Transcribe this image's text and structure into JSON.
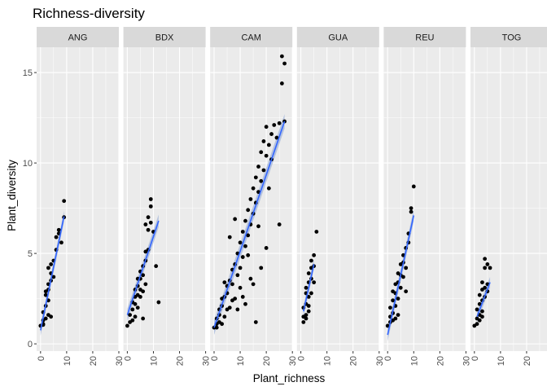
{
  "chart_data": {
    "type": "scatter",
    "title": "Richness-diversity",
    "xlabel": "Plant_richness",
    "ylabel": "Plant_diversity",
    "xlim": [
      -1.5,
      30
    ],
    "ylim": [
      -0.4,
      16.4
    ],
    "x_ticks": [
      0,
      10,
      20,
      30
    ],
    "y_ticks": [
      0,
      5,
      10,
      15
    ],
    "x_tick_labels": [
      "0",
      "10",
      "20",
      "30"
    ],
    "y_tick_labels": [
      "0",
      "5",
      "10",
      "15"
    ],
    "grid": true,
    "facet_by": "site",
    "colors": {
      "panel": "#ebebeb",
      "strip": "#d9d9d9",
      "grid": "#ffffff",
      "point": "#000000",
      "fit_line": "#3366ff",
      "fit_band": "#9db0d8"
    },
    "panels": [
      {
        "label": "ANG",
        "fit": {
          "x0": 0,
          "y0": 0.75,
          "x1": 9,
          "y1": 7.05,
          "band": 0.3
        },
        "points": [
          [
            0,
            1
          ],
          [
            1,
            1.05
          ],
          [
            1,
            1.3
          ],
          [
            2,
            1.4
          ],
          [
            1,
            1.75
          ],
          [
            2,
            2.1
          ],
          [
            3,
            2.4
          ],
          [
            2,
            2.7
          ],
          [
            3,
            3
          ],
          [
            3,
            3.3
          ],
          [
            4,
            3.5
          ],
          [
            4,
            3.9
          ],
          [
            3,
            4.2
          ],
          [
            4,
            4.4
          ],
          [
            5,
            4.6
          ],
          [
            5,
            3.7
          ],
          [
            6,
            5.2
          ],
          [
            6,
            5.9
          ],
          [
            7,
            6.1
          ],
          [
            7,
            6.3
          ],
          [
            8,
            5.6
          ],
          [
            9,
            7
          ],
          [
            9,
            7.9
          ],
          [
            3,
            1.6
          ],
          [
            4,
            1.5
          ],
          [
            1,
            1.1
          ],
          [
            2,
            2.9
          ]
        ]
      },
      {
        "label": "BDX",
        "fit": {
          "x0": 0,
          "y0": 1.6,
          "x1": 12,
          "y1": 6.8,
          "band": 0.35
        },
        "points": [
          [
            0,
            1
          ],
          [
            1,
            1.2
          ],
          [
            1,
            1.6
          ],
          [
            2,
            1.9
          ],
          [
            2,
            2.3
          ],
          [
            3,
            2.6
          ],
          [
            3,
            3
          ],
          [
            4,
            3.2
          ],
          [
            4,
            2
          ],
          [
            5,
            3.6
          ],
          [
            5,
            4
          ],
          [
            6,
            4.3
          ],
          [
            6,
            2.9
          ],
          [
            7,
            4.6
          ],
          [
            7,
            5.1
          ],
          [
            7,
            6.6
          ],
          [
            8,
            5.2
          ],
          [
            8,
            6.3
          ],
          [
            8,
            7
          ],
          [
            9,
            6.7
          ],
          [
            9,
            7.6
          ],
          [
            9,
            8
          ],
          [
            10,
            6.2
          ],
          [
            11,
            4.3
          ],
          [
            12,
            2.3
          ],
          [
            3,
            1.5
          ],
          [
            4,
            3.6
          ],
          [
            5,
            2.6
          ],
          [
            6,
            1.4
          ],
          [
            2,
            1.3
          ],
          [
            3,
            2.2
          ],
          [
            4,
            2.7
          ],
          [
            5,
            3
          ],
          [
            6,
            3.8
          ],
          [
            7,
            3.3
          ]
        ]
      },
      {
        "label": "CAM",
        "fit": {
          "x0": 0,
          "y0": 0.9,
          "x1": 27,
          "y1": 12.3,
          "band": 0.4
        },
        "points": [
          [
            0,
            0.9
          ],
          [
            1,
            1.1
          ],
          [
            1,
            1.4
          ],
          [
            2,
            1.6
          ],
          [
            2,
            1.9
          ],
          [
            3,
            2.1
          ],
          [
            3,
            2.5
          ],
          [
            4,
            2.6
          ],
          [
            4,
            1.5
          ],
          [
            5,
            2.8
          ],
          [
            5,
            3.2
          ],
          [
            6,
            2
          ],
          [
            6,
            3.5
          ],
          [
            7,
            3.3
          ],
          [
            7,
            4.1
          ],
          [
            8,
            2.5
          ],
          [
            8,
            4.4
          ],
          [
            9,
            3.8
          ],
          [
            9,
            5
          ],
          [
            10,
            4.2
          ],
          [
            10,
            5.6
          ],
          [
            11,
            4.8
          ],
          [
            11,
            6.2
          ],
          [
            12,
            5.4
          ],
          [
            12,
            6.8
          ],
          [
            13,
            6
          ],
          [
            13,
            7.4
          ],
          [
            14,
            6.6
          ],
          [
            14,
            8
          ],
          [
            15,
            7.2
          ],
          [
            15,
            8.6
          ],
          [
            16,
            7.8
          ],
          [
            16,
            9.2
          ],
          [
            17,
            8.4
          ],
          [
            17,
            9.8
          ],
          [
            18,
            9
          ],
          [
            18,
            10.6
          ],
          [
            19,
            9.6
          ],
          [
            19,
            11.2
          ],
          [
            20,
            10.4
          ],
          [
            20,
            12
          ],
          [
            21,
            11
          ],
          [
            22,
            11.6
          ],
          [
            22,
            10.2
          ],
          [
            23,
            12.1
          ],
          [
            24,
            11.4
          ],
          [
            25,
            12.2
          ],
          [
            26,
            14.4
          ],
          [
            26,
            15.9
          ],
          [
            27,
            15.5
          ],
          [
            27,
            12.3
          ],
          [
            25,
            6.6
          ],
          [
            16,
            1.2
          ],
          [
            15,
            3.3
          ],
          [
            12,
            2.2
          ],
          [
            9,
            1.9
          ],
          [
            3,
            1.1
          ],
          [
            4,
            3.4
          ],
          [
            5,
            1.9
          ],
          [
            7,
            2.4
          ],
          [
            2,
            1.2
          ],
          [
            1,
            0.9
          ],
          [
            10,
            3.1
          ],
          [
            11,
            2.6
          ],
          [
            13,
            4.9
          ],
          [
            14,
            3.6
          ],
          [
            18,
            4.2
          ],
          [
            20,
            5.3
          ],
          [
            6,
            5.9
          ],
          [
            8,
            6.9
          ],
          [
            21,
            8.6
          ],
          [
            17,
            6.5
          ]
        ]
      },
      {
        "label": "GUA",
        "fit": {
          "x0": 1,
          "y0": 1.8,
          "x1": 5,
          "y1": 4.4,
          "band": 0.3
        },
        "points": [
          [
            1,
            1.2
          ],
          [
            1,
            1.5
          ],
          [
            1,
            2
          ],
          [
            2,
            1.4
          ],
          [
            2,
            2.2
          ],
          [
            2,
            2.8
          ],
          [
            2,
            3.1
          ],
          [
            3,
            2.1
          ],
          [
            3,
            2.6
          ],
          [
            3,
            3.4
          ],
          [
            3,
            3.9
          ],
          [
            4,
            2.8
          ],
          [
            4,
            3.6
          ],
          [
            4,
            4.2
          ],
          [
            4,
            4.6
          ],
          [
            5,
            3.4
          ],
          [
            5,
            4.3
          ],
          [
            5,
            4.9
          ],
          [
            6,
            6.2
          ],
          [
            3,
            1.8
          ],
          [
            2,
            1.6
          ]
        ]
      },
      {
        "label": "REU",
        "fit": {
          "x0": 0,
          "y0": 0.5,
          "x1": 10,
          "y1": 7.1,
          "band": 0.35
        },
        "points": [
          [
            0,
            1
          ],
          [
            1,
            1.2
          ],
          [
            1,
            1.5
          ],
          [
            1,
            2
          ],
          [
            2,
            1.7
          ],
          [
            2,
            2.4
          ],
          [
            2,
            2.9
          ],
          [
            3,
            2.1
          ],
          [
            3,
            2.8
          ],
          [
            3,
            3.3
          ],
          [
            3,
            1.4
          ],
          [
            4,
            2.5
          ],
          [
            4,
            3.4
          ],
          [
            4,
            3.9
          ],
          [
            5,
            3.1
          ],
          [
            5,
            3.8
          ],
          [
            5,
            4.4
          ],
          [
            6,
            3.7
          ],
          [
            6,
            4.5
          ],
          [
            6,
            4.9
          ],
          [
            7,
            4.2
          ],
          [
            7,
            5.3
          ],
          [
            8,
            5.6
          ],
          [
            8,
            6.1
          ],
          [
            9,
            7.3
          ],
          [
            9,
            7.5
          ],
          [
            10,
            8.7
          ],
          [
            7,
            2.9
          ],
          [
            4,
            1.6
          ],
          [
            2,
            1.3
          ]
        ]
      },
      {
        "label": "TOG",
        "fit": {
          "x0": 1,
          "y0": 1.5,
          "x1": 6,
          "y1": 3.4,
          "band": 0.3
        },
        "points": [
          [
            0,
            1
          ],
          [
            1,
            1.1
          ],
          [
            1,
            1.4
          ],
          [
            1,
            1.9
          ],
          [
            2,
            1.6
          ],
          [
            2,
            2.2
          ],
          [
            2,
            2.7
          ],
          [
            3,
            1.8
          ],
          [
            3,
            2.4
          ],
          [
            3,
            3
          ],
          [
            3,
            3.4
          ],
          [
            4,
            2.6
          ],
          [
            4,
            3.1
          ],
          [
            4,
            4.2
          ],
          [
            4,
            4.7
          ],
          [
            5,
            2.9
          ],
          [
            5,
            3.3
          ],
          [
            5,
            4.4
          ],
          [
            6,
            4.2
          ],
          [
            2,
            1.3
          ],
          [
            3,
            1.5
          ]
        ]
      }
    ]
  }
}
